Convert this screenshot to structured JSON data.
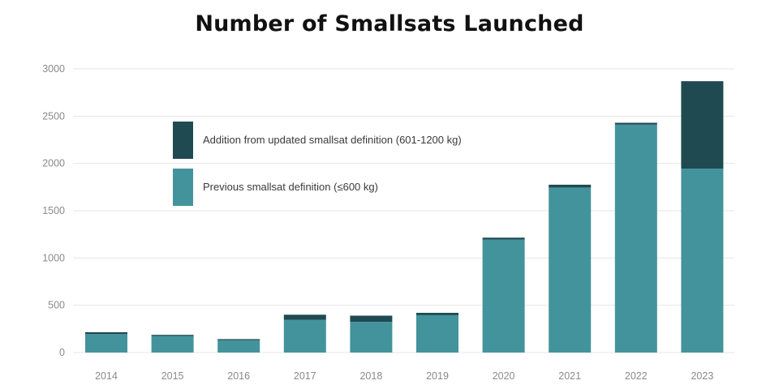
{
  "chart_data": {
    "type": "bar",
    "stacked": true,
    "title": "Number of Smallsats Launched",
    "xlabel": "",
    "ylabel": "",
    "ylim": [
      0,
      3000
    ],
    "y_ticks": [
      "0",
      "500",
      "1000",
      "1500",
      "2000",
      "2500",
      "3000"
    ],
    "categories": [
      "2014",
      "2015",
      "2016",
      "2017",
      "2018",
      "2019",
      "2020",
      "2021",
      "2022",
      "2023"
    ],
    "series": [
      {
        "name": "Previous smallsat definition (≤600 kg)",
        "color": "#43939d",
        "values": [
          195,
          175,
          130,
          345,
          325,
          395,
          1195,
          1745,
          2410,
          1945
        ]
      },
      {
        "name": "Addition from updated smallsat definition (601-1200 kg)",
        "color": "#1f4a52",
        "values": [
          20,
          12,
          12,
          55,
          65,
          25,
          20,
          30,
          20,
          925
        ]
      }
    ],
    "grid": true,
    "legend_position": "top-left",
    "legend_order": [
      1,
      0
    ]
  }
}
